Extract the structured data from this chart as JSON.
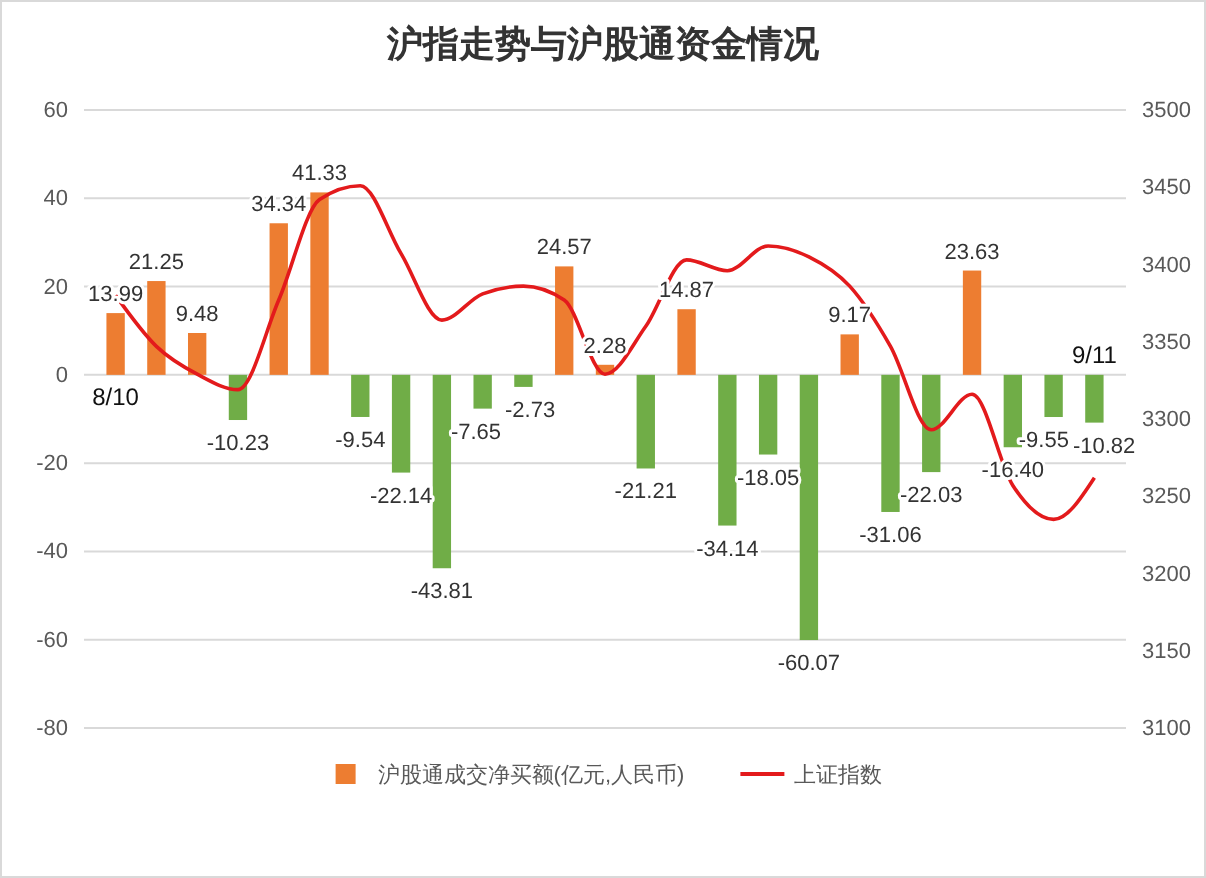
{
  "chart_data": {
    "type": "bar",
    "title": "沪指走势与沪股通资金情况",
    "categories": [
      "8/10",
      null,
      null,
      null,
      null,
      null,
      null,
      null,
      null,
      null,
      null,
      null,
      null,
      null,
      null,
      null,
      null,
      null,
      null,
      null,
      null,
      null,
      null,
      null,
      "9/11"
    ],
    "series": [
      {
        "name": "沪股通成交净买额(亿元,人民币)",
        "color": "#ed7d31",
        "colors": [
          "#ed7d31",
          "#ed7d31",
          "#ed7d31",
          "#70ad47",
          "#ed7d31",
          "#ed7d31",
          "#70ad47",
          "#70ad47",
          "#70ad47",
          "#70ad47",
          "#70ad47",
          "#ed7d31",
          "#ed7d31",
          "#70ad47",
          "#ed7d31",
          "#70ad47",
          "#70ad47",
          "#70ad47",
          "#ed7d31",
          "#70ad47",
          "#70ad47",
          "#ed7d31",
          "#70ad47",
          "#70ad47",
          "#70ad47"
        ],
        "values": [
          13.99,
          21.25,
          9.48,
          -10.23,
          34.34,
          41.33,
          -9.54,
          -22.14,
          -43.81,
          -7.65,
          -2.73,
          24.57,
          2.28,
          -21.21,
          14.87,
          -34.14,
          -18.05,
          -60.07,
          9.17,
          -31.06,
          -22.03,
          23.63,
          -16.4,
          -9.55,
          -10.82
        ],
        "value_labels": [
          "13.99",
          "21.25",
          "9.48",
          "-10.23",
          "34.34",
          "41.33",
          "-9.54",
          "-22.14",
          "-43.81",
          "-7.65",
          "-2.73",
          "24.57",
          "2.28",
          "-21.21",
          "14.87",
          "-34.14",
          "-18.05",
          "-60.07",
          "9.17",
          "-31.06",
          "-22.03",
          "23.63",
          "-16.40",
          "-9.55",
          "-10.82"
        ]
      },
      {
        "name": "上证指数",
        "type": "line",
        "axis": "y2",
        "color": "#e31a1c",
        "values": [
          3380,
          3347,
          3329,
          3319,
          3377,
          3442,
          3451,
          3407,
          3364,
          3381,
          3386,
          3377,
          3329,
          3360,
          3403,
          3396,
          3412,
          3405,
          3386,
          3347,
          3293,
          3316,
          3257,
          3235,
          3262
        ]
      }
    ],
    "ylim": [
      -80,
      60
    ],
    "yticks": [
      -80,
      -60,
      -40,
      -20,
      0,
      20,
      40,
      60
    ],
    "y2lim": [
      3100,
      3500
    ],
    "y2ticks": [
      3100,
      3150,
      3200,
      3250,
      3300,
      3350,
      3400,
      3450,
      3500
    ],
    "grid": "y",
    "legend": "bottom",
    "line_style": "solid",
    "marker": "none"
  }
}
